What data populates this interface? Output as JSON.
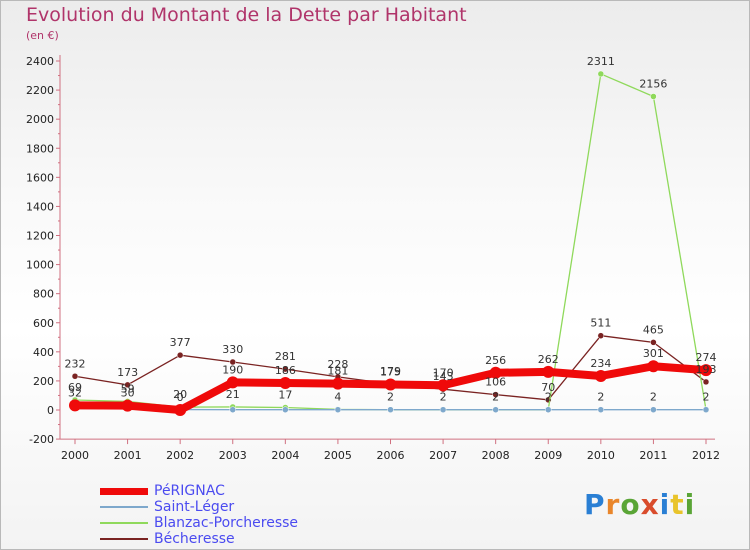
{
  "chart_data": {
    "type": "line",
    "title": "Evolution du Montant de la Dette par Habitant",
    "subtitle": "(en €)",
    "x": [
      "2000",
      "2001",
      "2002",
      "2003",
      "2004",
      "2005",
      "2006",
      "2007",
      "2008",
      "2009",
      "2010",
      "2011",
      "2012"
    ],
    "ylim": [
      -200,
      2400
    ],
    "yticks": [
      "-200",
      "0",
      "200",
      "400",
      "600",
      "800",
      "1000",
      "1200",
      "1400",
      "1600",
      "1800",
      "2000",
      "2200",
      "2400"
    ],
    "grid": false,
    "legend_position": "bottom-left",
    "series": [
      {
        "name": "PéRIGNAC",
        "color": "#ef0a0a",
        "values": [
          32,
          30,
          0,
          190,
          186,
          181,
          175,
          170,
          256,
          262,
          234,
          301,
          274
        ],
        "labels": [
          "32",
          "30",
          "0",
          "190",
          "186",
          "181",
          "175",
          "170",
          "256",
          "262",
          "234",
          "301",
          "274"
        ]
      },
      {
        "name": "Saint-Léger",
        "color": "#7ea8cc",
        "values": [
          10,
          9,
          3,
          2,
          2,
          2,
          2,
          2,
          2,
          2,
          2,
          2,
          2
        ],
        "labels": [
          "",
          "",
          "",
          "",
          "",
          "",
          "",
          "",
          "",
          "",
          "2",
          "2",
          ""
        ]
      },
      {
        "name": "Blanzac-Porcheresse",
        "color": "#8fd95b",
        "values": [
          69,
          59,
          20,
          21,
          17,
          4,
          2,
          2,
          2,
          2,
          2311,
          2156,
          2
        ],
        "labels": [
          "69",
          "59",
          "20",
          "21",
          "17",
          "4",
          "2",
          "2",
          "2",
          "2",
          "2311",
          "2156",
          "2"
        ]
      },
      {
        "name": "Bécheresse",
        "color": "#7a2322",
        "values": [
          232,
          173,
          377,
          330,
          281,
          228,
          179,
          143,
          106,
          70,
          511,
          465,
          193
        ],
        "labels": [
          "232",
          "173",
          "377",
          "330",
          "281",
          "228",
          "179",
          "143",
          "106",
          "70",
          "511",
          "465",
          "193"
        ]
      }
    ]
  },
  "brand": {
    "letters": [
      "P",
      "r",
      "o",
      "x",
      "i",
      "t",
      "i"
    ]
  }
}
